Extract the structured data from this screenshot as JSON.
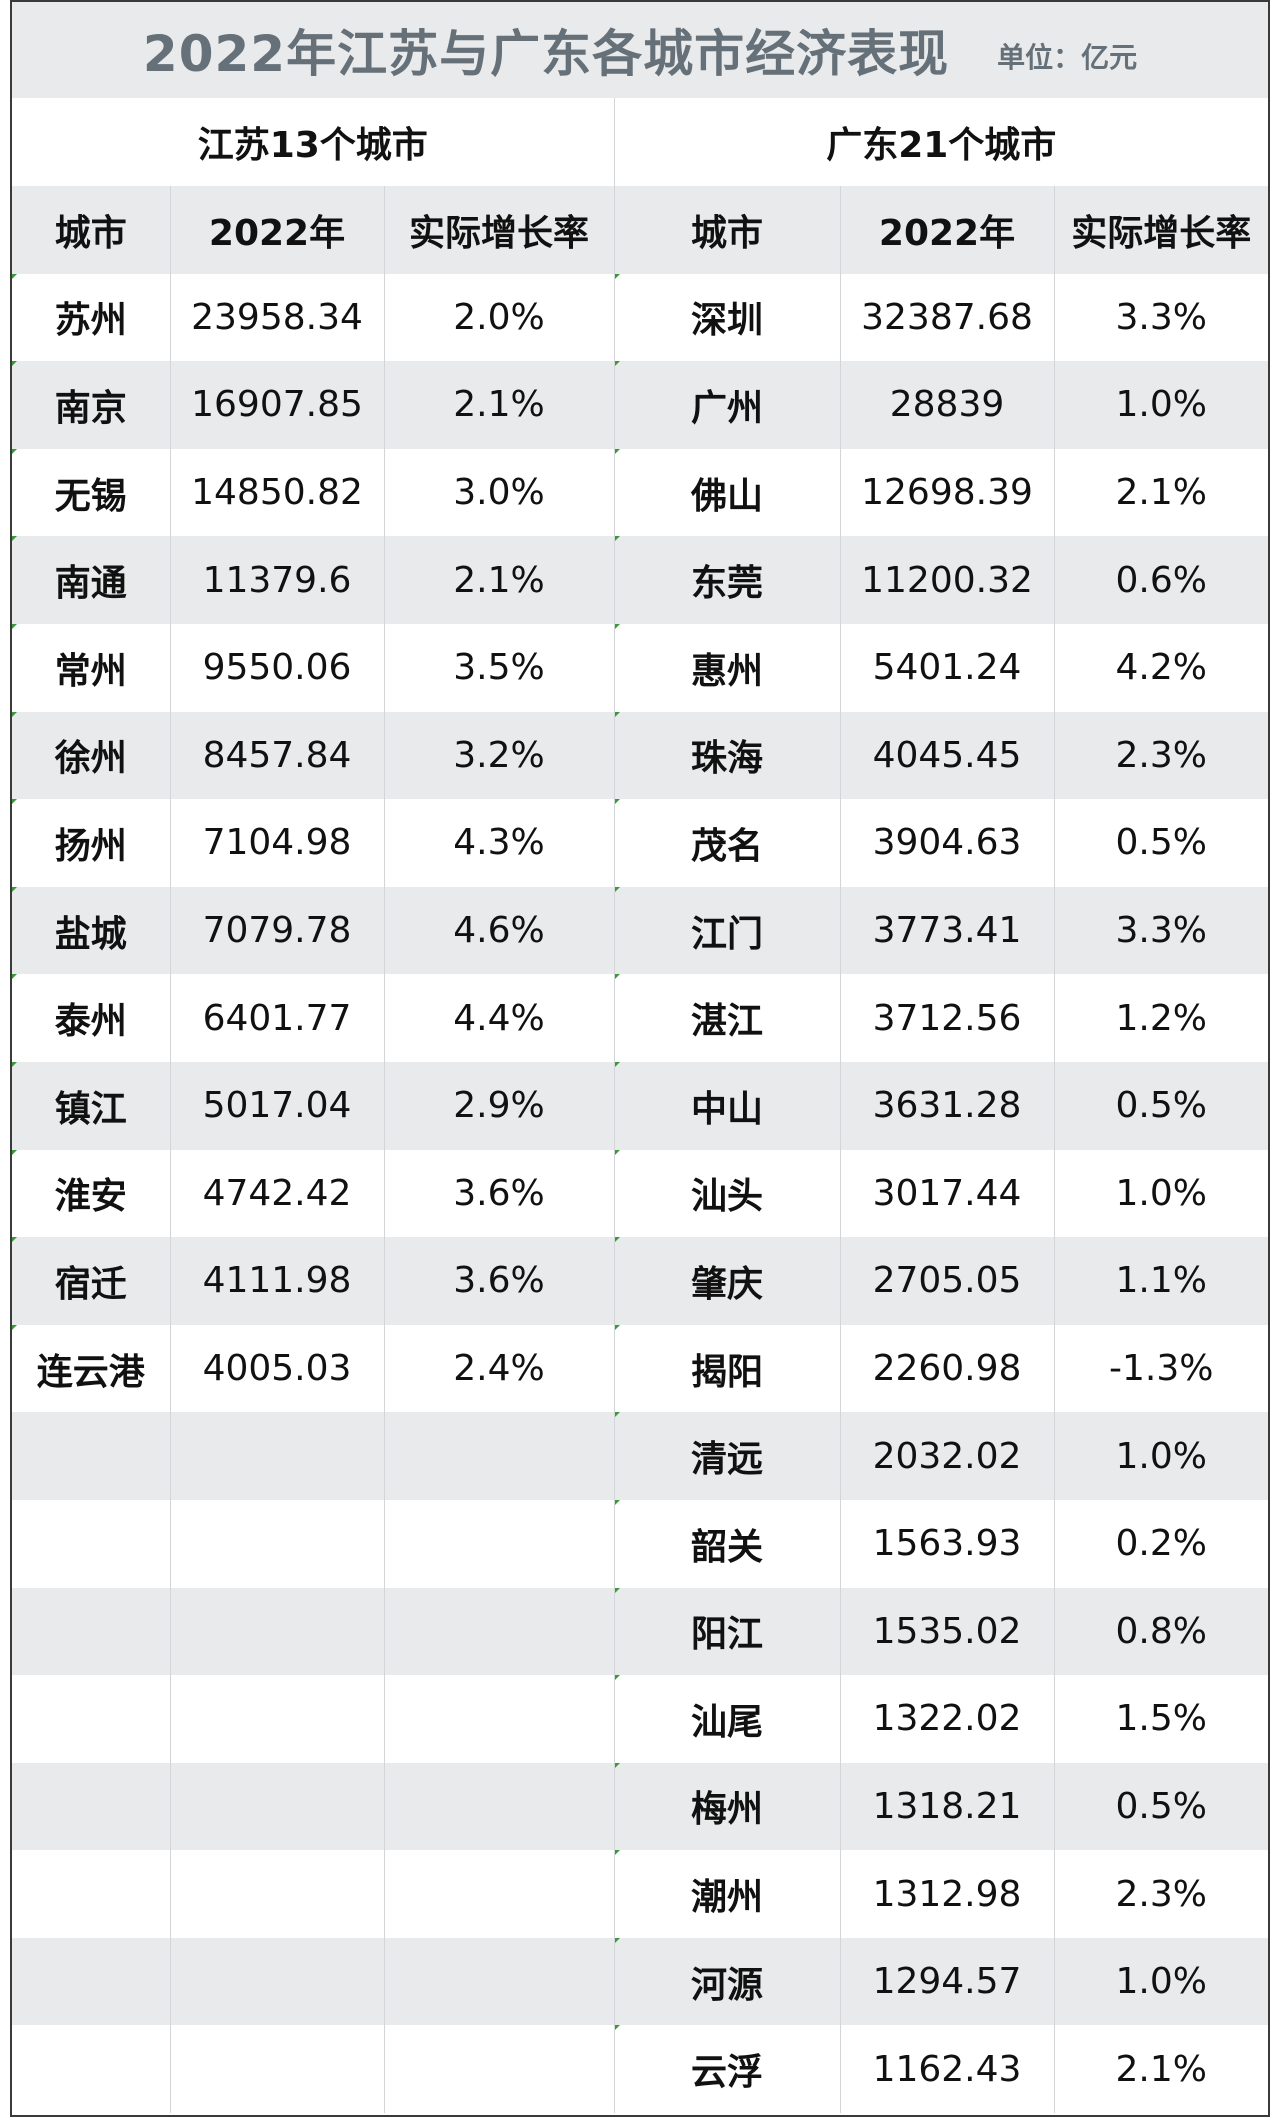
{
  "title": "2022年江苏与广东各城市经济表现",
  "unit": "单位：亿元",
  "jiangsu": {
    "group_title": "江苏13个城市",
    "headers": [
      "城市",
      "2022年",
      "实际增长率"
    ],
    "rows": [
      {
        "city": "苏州",
        "gdp": "23958.34",
        "growth": "2.0%"
      },
      {
        "city": "南京",
        "gdp": "16907.85",
        "growth": "2.1%"
      },
      {
        "city": "无锡",
        "gdp": "14850.82",
        "growth": "3.0%"
      },
      {
        "city": "南通",
        "gdp": "11379.6",
        "growth": "2.1%"
      },
      {
        "city": "常州",
        "gdp": "9550.06",
        "growth": "3.5%"
      },
      {
        "city": "徐州",
        "gdp": "8457.84",
        "growth": "3.2%"
      },
      {
        "city": "扬州",
        "gdp": "7104.98",
        "growth": "4.3%"
      },
      {
        "city": "盐城",
        "gdp": "7079.78",
        "growth": "4.6%"
      },
      {
        "city": "泰州",
        "gdp": "6401.77",
        "growth": "4.4%"
      },
      {
        "city": "镇江",
        "gdp": "5017.04",
        "growth": "2.9%"
      },
      {
        "city": "淮安",
        "gdp": "4742.42",
        "growth": "3.6%"
      },
      {
        "city": "宿迁",
        "gdp": "4111.98",
        "growth": "3.6%"
      },
      {
        "city": "连云港",
        "gdp": "4005.03",
        "growth": "2.4%"
      }
    ]
  },
  "guangdong": {
    "group_title": "广东21个城市",
    "headers": [
      "城市",
      "2022年",
      "实际增长率"
    ],
    "rows": [
      {
        "city": "深圳",
        "gdp": "32387.68",
        "growth": "3.3%"
      },
      {
        "city": "广州",
        "gdp": "28839",
        "growth": "1.0%"
      },
      {
        "city": "佛山",
        "gdp": "12698.39",
        "growth": "2.1%"
      },
      {
        "city": "东莞",
        "gdp": "11200.32",
        "growth": "0.6%"
      },
      {
        "city": "惠州",
        "gdp": "5401.24",
        "growth": "4.2%"
      },
      {
        "city": "珠海",
        "gdp": "4045.45",
        "growth": "2.3%"
      },
      {
        "city": "茂名",
        "gdp": "3904.63",
        "growth": "0.5%"
      },
      {
        "city": "江门",
        "gdp": "3773.41",
        "growth": "3.3%"
      },
      {
        "city": "湛江",
        "gdp": "3712.56",
        "growth": "1.2%"
      },
      {
        "city": "中山",
        "gdp": "3631.28",
        "growth": "0.5%"
      },
      {
        "city": "汕头",
        "gdp": "3017.44",
        "growth": "1.0%"
      },
      {
        "city": "肇庆",
        "gdp": "2705.05",
        "growth": "1.1%"
      },
      {
        "city": "揭阳",
        "gdp": "2260.98",
        "growth": "-1.3%"
      },
      {
        "city": "清远",
        "gdp": "2032.02",
        "growth": "1.0%"
      },
      {
        "city": "韶关",
        "gdp": "1563.93",
        "growth": "0.2%"
      },
      {
        "city": "阳江",
        "gdp": "1535.02",
        "growth": "0.8%"
      },
      {
        "city": "汕尾",
        "gdp": "1322.02",
        "growth": "1.5%"
      },
      {
        "city": "梅州",
        "gdp": "1318.21",
        "growth": "0.5%"
      },
      {
        "city": "潮州",
        "gdp": "1312.98",
        "growth": "2.3%"
      },
      {
        "city": "河源",
        "gdp": "1294.57",
        "growth": "1.0%"
      },
      {
        "city": "云浮",
        "gdp": "1162.43",
        "growth": "2.1%"
      }
    ]
  }
}
